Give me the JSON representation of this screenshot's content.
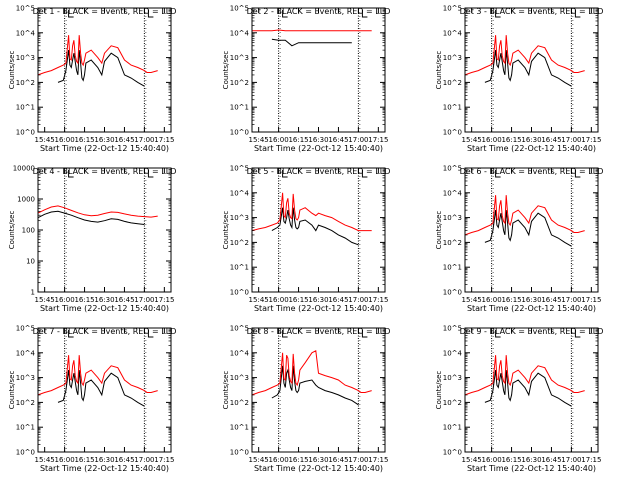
{
  "figure": {
    "x_tick_labels": [
      "15:45",
      "16:00",
      "16:15",
      "16:30",
      "16:45",
      "17:00",
      "17:15"
    ],
    "colors": {
      "events": "#000000",
      "lld": "#ff0000",
      "axes": "#000000"
    }
  },
  "chart_data": [
    {
      "type": "line",
      "title": "Det 1 - BLACK = Events, RED = LLD",
      "xlabel": "Start Time (22-Oct-12 15:40:40)",
      "ylabel": "Counts/sec",
      "yscale": "log",
      "ylim": [
        1,
        100000
      ],
      "y_tick_labels": [
        "10^0",
        "10^1",
        "10^2",
        "10^3",
        "10^4",
        "10^5"
      ],
      "x": [
        "15:40",
        "15:45",
        "15:50",
        "15:55",
        "15:59",
        "16:01",
        "16:03",
        "16:04",
        "16:05",
        "16:06",
        "16:07",
        "16:08",
        "16:09",
        "16:10",
        "16:11",
        "16:12",
        "16:13",
        "16:14",
        "16:15",
        "16:16",
        "16:20",
        "16:25",
        "16:28",
        "16:30",
        "16:35",
        "16:40",
        "16:45",
        "16:50",
        "16:55",
        "17:00",
        "17:02",
        "17:05",
        "17:10"
      ],
      "series": [
        {
          "name": "Events",
          "values": [
            null,
            null,
            null,
            100,
            120,
            300,
            2000,
            500,
            400,
            800,
            1500,
            700,
            300,
            200,
            2000,
            600,
            150,
            120,
            200,
            600,
            800,
            400,
            200,
            700,
            1500,
            1000,
            200,
            150,
            100,
            70,
            null,
            null,
            null
          ]
        },
        {
          "name": "LLD",
          "values": [
            200,
            250,
            300,
            400,
            500,
            600,
            8000,
            900,
            800,
            3000,
            5000,
            1200,
            700,
            600,
            8000,
            1500,
            600,
            500,
            800,
            1500,
            2000,
            1000,
            600,
            1500,
            3000,
            2500,
            800,
            500,
            400,
            300,
            250,
            250,
            300
          ]
        }
      ]
    },
    {
      "type": "line",
      "title": "Det 2 - BLACK = Events, RED = LLD",
      "xlabel": "Start Time (22-Oct-12 15:40:40)",
      "ylabel": "Counts/sec",
      "yscale": "log",
      "ylim": [
        1,
        100000
      ],
      "y_tick_labels": [
        "10^0",
        "10^1",
        "10^2",
        "10^3",
        "10^4",
        "10^5"
      ],
      "x": [
        "15:40",
        "15:45",
        "15:50",
        "15:55",
        "16:00",
        "16:05",
        "16:10",
        "16:15",
        "16:20",
        "16:25",
        "16:30",
        "16:35",
        "16:40",
        "16:45",
        "16:50",
        "16:55",
        "17:00",
        "17:05",
        "17:10"
      ],
      "series": [
        {
          "name": "Events",
          "values": [
            null,
            null,
            null,
            5500,
            5000,
            5000,
            3000,
            4000,
            4000,
            4000,
            4000,
            4000,
            4000,
            4000,
            4000,
            4000,
            null,
            null,
            null
          ]
        },
        {
          "name": "LLD",
          "values": [
            12000,
            12000,
            12000,
            12000,
            13000,
            12000,
            12000,
            12000,
            12000,
            12000,
            12000,
            12000,
            12000,
            12000,
            12000,
            12000,
            12000,
            12000,
            12000
          ]
        }
      ]
    },
    {
      "type": "line",
      "title": "Det 3 - BLACK = Events, RED = LLD",
      "xlabel": "Start Time (22-Oct-12 15:40:40)",
      "ylabel": "Counts/sec",
      "yscale": "log",
      "ylim": [
        1,
        100000
      ],
      "y_tick_labels": [
        "10^0",
        "10^1",
        "10^2",
        "10^3",
        "10^4",
        "10^5"
      ],
      "x": [
        "15:40",
        "15:45",
        "15:50",
        "15:55",
        "15:59",
        "16:01",
        "16:03",
        "16:04",
        "16:05",
        "16:06",
        "16:07",
        "16:08",
        "16:09",
        "16:10",
        "16:11",
        "16:12",
        "16:13",
        "16:14",
        "16:15",
        "16:16",
        "16:20",
        "16:25",
        "16:28",
        "16:30",
        "16:35",
        "16:40",
        "16:45",
        "16:50",
        "16:55",
        "17:00",
        "17:02",
        "17:05",
        "17:10"
      ],
      "series": [
        {
          "name": "Events",
          "values": [
            null,
            null,
            null,
            100,
            120,
            300,
            2000,
            500,
            400,
            800,
            1500,
            700,
            300,
            200,
            2000,
            600,
            150,
            120,
            200,
            600,
            800,
            400,
            200,
            700,
            1500,
            1000,
            200,
            150,
            100,
            70,
            null,
            null,
            null
          ]
        },
        {
          "name": "LLD",
          "values": [
            200,
            250,
            300,
            400,
            500,
            600,
            8000,
            900,
            800,
            3000,
            5000,
            1200,
            700,
            600,
            8000,
            1500,
            600,
            500,
            800,
            1500,
            2000,
            1000,
            600,
            1500,
            3000,
            2500,
            800,
            500,
            400,
            300,
            250,
            250,
            300
          ]
        }
      ]
    },
    {
      "type": "line",
      "title": "Det 4 - BLACK = Events, RED = LLD",
      "xlabel": "Start Time (22-Oct-12 15:40:40)",
      "ylabel": "Counts/sec",
      "yscale": "log",
      "ylim": [
        1,
        10000
      ],
      "y_tick_labels": [
        "1",
        "10",
        "100",
        "1000",
        "10000"
      ],
      "x": [
        "15:40",
        "15:45",
        "15:50",
        "15:55",
        "16:00",
        "16:05",
        "16:10",
        "16:15",
        "16:20",
        "16:25",
        "16:30",
        "16:35",
        "16:40",
        "16:45",
        "16:50",
        "16:55",
        "17:00",
        "17:05",
        "17:10"
      ],
      "series": [
        {
          "name": "Events",
          "values": [
            250,
            320,
            380,
            400,
            350,
            300,
            250,
            210,
            190,
            180,
            200,
            230,
            220,
            190,
            170,
            160,
            150,
            null,
            null
          ]
        },
        {
          "name": "LLD",
          "values": [
            350,
            450,
            550,
            600,
            520,
            430,
            360,
            310,
            290,
            300,
            340,
            380,
            370,
            330,
            300,
            280,
            270,
            260,
            280
          ]
        }
      ]
    },
    {
      "type": "line",
      "title": "Det 5 - BLACK = Events, RED = LLD",
      "xlabel": "Start Time (22-Oct-12 15:40:40)",
      "ylabel": "Counts/sec",
      "yscale": "log",
      "ylim": [
        1,
        100000
      ],
      "y_tick_labels": [
        "10^0",
        "10^1",
        "10^2",
        "10^3",
        "10^4",
        "10^5"
      ],
      "x": [
        "15:40",
        "15:45",
        "15:50",
        "15:55",
        "15:59",
        "16:01",
        "16:03",
        "16:04",
        "16:05",
        "16:06",
        "16:07",
        "16:08",
        "16:09",
        "16:10",
        "16:11",
        "16:12",
        "16:13",
        "16:14",
        "16:15",
        "16:16",
        "16:20",
        "16:25",
        "16:28",
        "16:30",
        "16:35",
        "16:40",
        "16:45",
        "16:50",
        "16:55",
        "17:00",
        "17:02",
        "17:05",
        "17:10"
      ],
      "series": [
        {
          "name": "Events",
          "values": [
            null,
            null,
            null,
            300,
            400,
            500,
            2500,
            700,
            600,
            1000,
            2000,
            900,
            500,
            400,
            2500,
            800,
            400,
            350,
            400,
            700,
            800,
            500,
            300,
            500,
            400,
            300,
            200,
            150,
            100,
            80,
            null,
            null,
            null
          ]
        },
        {
          "name": "LLD",
          "values": [
            300,
            350,
            400,
            500,
            600,
            800,
            10000,
            1200,
            1000,
            4000,
            6000,
            1500,
            1000,
            900,
            9000,
            2000,
            900,
            800,
            1000,
            2000,
            2500,
            1500,
            1200,
            1500,
            1200,
            1000,
            700,
            500,
            400,
            300,
            300,
            300,
            300
          ]
        }
      ]
    },
    {
      "type": "line",
      "title": "Det 6 - BLACK = Events, RED = LLD",
      "xlabel": "Start Time (22-Oct-12 15:40:40)",
      "ylabel": "Counts/sec",
      "yscale": "log",
      "ylim": [
        1,
        100000
      ],
      "y_tick_labels": [
        "10^0",
        "10^1",
        "10^2",
        "10^3",
        "10^4",
        "10^5"
      ],
      "x": [
        "15:40",
        "15:45",
        "15:50",
        "15:55",
        "15:59",
        "16:01",
        "16:03",
        "16:04",
        "16:05",
        "16:06",
        "16:07",
        "16:08",
        "16:09",
        "16:10",
        "16:11",
        "16:12",
        "16:13",
        "16:14",
        "16:15",
        "16:16",
        "16:20",
        "16:25",
        "16:28",
        "16:30",
        "16:35",
        "16:40",
        "16:45",
        "16:50",
        "16:55",
        "17:00",
        "17:02",
        "17:05",
        "17:10"
      ],
      "series": [
        {
          "name": "Events",
          "values": [
            null,
            null,
            null,
            100,
            120,
            300,
            2000,
            500,
            400,
            800,
            1500,
            700,
            300,
            200,
            2000,
            600,
            150,
            120,
            200,
            600,
            800,
            400,
            200,
            700,
            1500,
            1000,
            200,
            150,
            100,
            70,
            null,
            null,
            null
          ]
        },
        {
          "name": "LLD",
          "values": [
            200,
            250,
            300,
            400,
            500,
            600,
            8000,
            900,
            800,
            3000,
            5000,
            1200,
            700,
            600,
            8000,
            1500,
            600,
            500,
            800,
            1500,
            2000,
            1000,
            600,
            1500,
            3000,
            2500,
            800,
            500,
            400,
            300,
            250,
            250,
            300
          ]
        }
      ]
    },
    {
      "type": "line",
      "title": "Det 7 - BLACK = Events, RED = LLD",
      "xlabel": "Start Time (22-Oct-12 15:40:40)",
      "ylabel": "Counts/sec",
      "yscale": "log",
      "ylim": [
        1,
        100000
      ],
      "y_tick_labels": [
        "10^0",
        "10^1",
        "10^2",
        "10^3",
        "10^4",
        "10^5"
      ],
      "x": [
        "15:40",
        "15:45",
        "15:50",
        "15:55",
        "15:59",
        "16:01",
        "16:03",
        "16:04",
        "16:05",
        "16:06",
        "16:07",
        "16:08",
        "16:09",
        "16:10",
        "16:11",
        "16:12",
        "16:13",
        "16:14",
        "16:15",
        "16:16",
        "16:20",
        "16:25",
        "16:28",
        "16:30",
        "16:35",
        "16:40",
        "16:45",
        "16:50",
        "16:55",
        "17:00",
        "17:02",
        "17:05",
        "17:10"
      ],
      "series": [
        {
          "name": "Events",
          "values": [
            null,
            null,
            null,
            100,
            120,
            300,
            2000,
            500,
            400,
            800,
            1500,
            700,
            300,
            200,
            2000,
            600,
            150,
            120,
            200,
            600,
            800,
            400,
            200,
            700,
            1500,
            1000,
            200,
            150,
            100,
            70,
            null,
            null,
            null
          ]
        },
        {
          "name": "LLD",
          "values": [
            200,
            250,
            300,
            400,
            500,
            600,
            8000,
            900,
            800,
            3000,
            5000,
            1200,
            700,
            600,
            8000,
            1500,
            600,
            500,
            800,
            1500,
            2000,
            1000,
            600,
            1500,
            3000,
            2500,
            800,
            500,
            400,
            300,
            250,
            250,
            300
          ]
        }
      ]
    },
    {
      "type": "line",
      "title": "Det 8 - BLACK = Events, RED = LLD",
      "xlabel": "Start Time (22-Oct-12 15:40:40)",
      "ylabel": "Counts/sec",
      "yscale": "log",
      "ylim": [
        1,
        100000
      ],
      "y_tick_labels": [
        "10^0",
        "10^1",
        "10^2",
        "10^3",
        "10^4",
        "10^5"
      ],
      "x": [
        "15:40",
        "15:45",
        "15:50",
        "15:55",
        "15:59",
        "16:01",
        "16:03",
        "16:04",
        "16:05",
        "16:06",
        "16:07",
        "16:08",
        "16:09",
        "16:10",
        "16:11",
        "16:12",
        "16:13",
        "16:14",
        "16:15",
        "16:16",
        "16:20",
        "16:25",
        "16:28",
        "16:30",
        "16:35",
        "16:40",
        "16:45",
        "16:50",
        "16:55",
        "17:00",
        "17:02",
        "17:05",
        "17:10"
      ],
      "series": [
        {
          "name": "Events",
          "values": [
            null,
            null,
            null,
            150,
            200,
            300,
            3000,
            600,
            400,
            1500,
            2000,
            800,
            400,
            300,
            3000,
            700,
            300,
            250,
            300,
            600,
            700,
            800,
            500,
            400,
            300,
            250,
            200,
            150,
            120,
            80,
            null,
            null,
            null
          ]
        },
        {
          "name": "LLD",
          "values": [
            200,
            250,
            300,
            400,
            500,
            600,
            10000,
            900,
            800,
            8000,
            6000,
            1200,
            700,
            600,
            9000,
            1500,
            600,
            500,
            800,
            2000,
            4000,
            10000,
            12000,
            1500,
            1200,
            1000,
            800,
            500,
            400,
            300,
            250,
            250,
            300
          ]
        }
      ]
    },
    {
      "type": "line",
      "title": "Det 9 - BLACK = Events, RED = LLD",
      "xlabel": "Start Time (22-Oct-12 15:40:40)",
      "ylabel": "Counts/sec",
      "yscale": "log",
      "ylim": [
        1,
        100000
      ],
      "y_tick_labels": [
        "10^0",
        "10^1",
        "10^2",
        "10^3",
        "10^4",
        "10^5"
      ],
      "x": [
        "15:40",
        "15:45",
        "15:50",
        "15:55",
        "15:59",
        "16:01",
        "16:03",
        "16:04",
        "16:05",
        "16:06",
        "16:07",
        "16:08",
        "16:09",
        "16:10",
        "16:11",
        "16:12",
        "16:13",
        "16:14",
        "16:15",
        "16:16",
        "16:20",
        "16:25",
        "16:28",
        "16:30",
        "16:35",
        "16:40",
        "16:45",
        "16:50",
        "16:55",
        "17:00",
        "17:02",
        "17:05",
        "17:10"
      ],
      "series": [
        {
          "name": "Events",
          "values": [
            null,
            null,
            null,
            100,
            120,
            300,
            2000,
            500,
            400,
            800,
            1500,
            700,
            300,
            200,
            2000,
            600,
            150,
            120,
            200,
            600,
            800,
            400,
            200,
            700,
            1500,
            1000,
            200,
            150,
            100,
            70,
            null,
            null,
            null
          ]
        },
        {
          "name": "LLD",
          "values": [
            200,
            250,
            300,
            400,
            500,
            600,
            8000,
            900,
            800,
            3000,
            5000,
            1200,
            700,
            600,
            8000,
            1500,
            600,
            500,
            800,
            1500,
            2000,
            1000,
            600,
            1500,
            3000,
            2500,
            800,
            500,
            400,
            300,
            250,
            250,
            300
          ]
        }
      ]
    }
  ]
}
